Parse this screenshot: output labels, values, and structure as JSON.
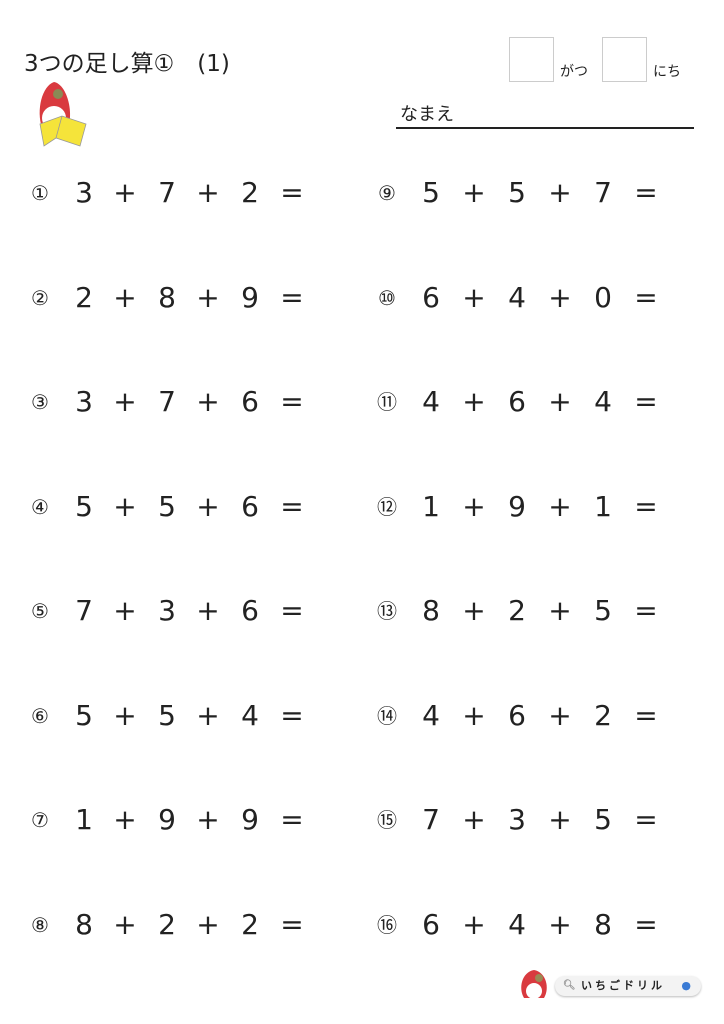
{
  "header": {
    "title": "3つの足し算①　(1)",
    "month_label": "がつ",
    "day_label": "にち",
    "name_label": "なまえ"
  },
  "problems": [
    {
      "num": "①",
      "a": "3",
      "b": "7",
      "c": "2"
    },
    {
      "num": "②",
      "a": "2",
      "b": "8",
      "c": "9"
    },
    {
      "num": "③",
      "a": "3",
      "b": "7",
      "c": "6"
    },
    {
      "num": "④",
      "a": "5",
      "b": "5",
      "c": "6"
    },
    {
      "num": "⑤",
      "a": "7",
      "b": "3",
      "c": "6"
    },
    {
      "num": "⑥",
      "a": "5",
      "b": "5",
      "c": "4"
    },
    {
      "num": "⑦",
      "a": "1",
      "b": "9",
      "c": "9"
    },
    {
      "num": "⑧",
      "a": "8",
      "b": "2",
      "c": "2"
    },
    {
      "num": "⑨",
      "a": "5",
      "b": "5",
      "c": "7"
    },
    {
      "num": "⑩",
      "a": "6",
      "b": "4",
      "c": "0"
    },
    {
      "num": "⑪",
      "a": "4",
      "b": "6",
      "c": "4"
    },
    {
      "num": "⑫",
      "a": "1",
      "b": "9",
      "c": "1"
    },
    {
      "num": "⑬",
      "a": "8",
      "b": "2",
      "c": "5"
    },
    {
      "num": "⑭",
      "a": "4",
      "b": "6",
      "c": "2"
    },
    {
      "num": "⑮",
      "a": "7",
      "b": "3",
      "c": "5"
    },
    {
      "num": "⑯",
      "a": "6",
      "b": "4",
      "c": "8"
    }
  ],
  "symbols": {
    "plus": "+",
    "equals": "="
  },
  "footer": {
    "search_text": "いちごドリル",
    "logo_icon": "strawberry-mascot",
    "search_icon": "magnifier-icon",
    "mic_icon": "microphone-icon"
  },
  "colors": {
    "strawberry_red": "#d93a3f",
    "book_yellow": "#f5e43a"
  }
}
